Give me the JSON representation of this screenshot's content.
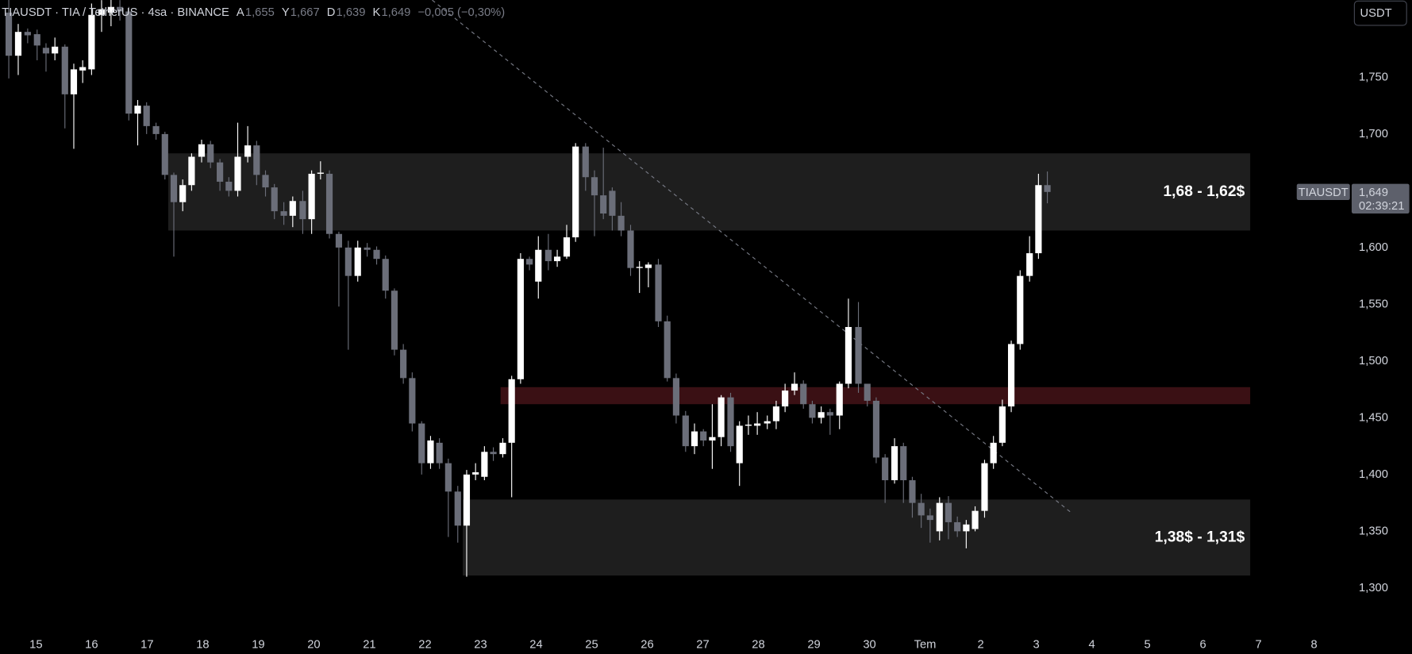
{
  "chart_data": {
    "type": "candlestick",
    "header": {
      "symbol": "TIAUSDT · TIA / TetherUS · 4sa · BINANCE",
      "ohlc": [
        {
          "label": "A",
          "value": "1,655"
        },
        {
          "label": "Y",
          "value": "1,667"
        },
        {
          "label": "D",
          "value": "1,639"
        },
        {
          "label": "K",
          "value": "1,649"
        }
      ],
      "change": "−0,005 (−0,30%)"
    },
    "currency_button": "USDT",
    "x": [
      -0.49,
      -0.32,
      -0.15,
      0.02,
      0.18,
      0.34,
      0.52,
      0.68,
      0.84,
      1.0,
      1.18,
      1.35,
      1.51,
      1.67,
      1.83,
      1.99,
      2.16,
      2.32,
      2.48,
      2.64,
      2.8,
      2.98,
      3.14,
      3.31,
      3.47,
      3.63,
      3.81,
      3.97,
      4.13,
      4.29,
      4.46,
      4.62,
      4.8,
      4.96,
      5.12,
      5.28,
      5.45,
      5.62,
      5.79,
      5.96,
      6.13,
      6.29,
      6.45,
      6.61,
      6.77,
      6.94,
      7.1,
      7.26,
      7.42,
      7.59,
      7.75,
      7.91,
      8.07,
      8.23,
      8.4,
      8.56,
      8.72,
      8.88,
      9.04,
      9.22,
      9.38,
      9.55,
      9.71,
      9.89,
      10.05,
      10.21,
      10.37,
      10.53,
      10.7,
      10.86,
      11.02,
      11.2,
      11.36,
      11.52,
      11.69,
      11.85,
      12.01,
      12.17,
      12.33,
      12.5,
      12.66,
      12.82,
      12.98,
      13.16,
      13.32,
      13.48,
      13.65,
      13.81,
      13.97,
      14.13,
      14.29,
      14.46,
      14.62,
      14.8,
      14.96,
      15.12,
      15.28,
      15.45,
      15.61,
      15.77,
      15.93,
      16.09,
      16.26,
      16.42,
      16.58,
      16.74,
      16.9,
      17.07,
      17.23,
      17.39,
      17.55,
      17.71,
      17.88,
      18.04,
      18.2
    ],
    "open": [
      1.807,
      1.769,
      1.79,
      1.788,
      1.776,
      1.771,
      1.777,
      1.735,
      1.756,
      1.757,
      1.805,
      1.807,
      1.812,
      1.808,
      1.718,
      1.725,
      1.707,
      1.7,
      1.664,
      1.64,
      1.655,
      1.68,
      1.691,
      1.675,
      1.658,
      1.65,
      1.68,
      1.69,
      1.664,
      1.653,
      1.632,
      1.628,
      1.641,
      1.625,
      1.665,
      1.665,
      1.612,
      1.6,
      1.575,
      1.6,
      1.598,
      1.59,
      1.562,
      1.51,
      1.485,
      1.445,
      1.41,
      1.428,
      1.41,
      1.385,
      1.355,
      1.4,
      1.398,
      1.42,
      1.418,
      1.428,
      1.484,
      1.59,
      1.57,
      1.598,
      1.588,
      1.592,
      1.609,
      1.689,
      1.662,
      1.646,
      1.65,
      1.628,
      1.615,
      1.582,
      1.582,
      1.585,
      1.535,
      1.485,
      1.452,
      1.425,
      1.438,
      1.43,
      1.433,
      1.468,
      1.41,
      1.443,
      1.443,
      1.445,
      1.447,
      1.46,
      1.474,
      1.48,
      1.462,
      1.45,
      1.455,
      1.452,
      1.48,
      1.53,
      1.48,
      1.465,
      1.415,
      1.395,
      1.425,
      1.395,
      1.375,
      1.364,
      1.35,
      1.375,
      1.358,
      1.35,
      1.352,
      1.368,
      1.41,
      1.428,
      1.46,
      1.515,
      1.575,
      1.595,
      1.655
    ],
    "high": [
      1.82,
      1.797,
      1.793,
      1.792,
      1.78,
      1.785,
      1.779,
      1.762,
      1.765,
      1.815,
      1.818,
      1.82,
      1.818,
      1.812,
      1.73,
      1.728,
      1.71,
      1.702,
      1.666,
      1.66,
      1.683,
      1.695,
      1.694,
      1.678,
      1.662,
      1.71,
      1.707,
      1.694,
      1.668,
      1.656,
      1.64,
      1.645,
      1.65,
      1.668,
      1.676,
      1.668,
      1.614,
      1.606,
      1.606,
      1.604,
      1.601,
      1.593,
      1.564,
      1.515,
      1.49,
      1.447,
      1.434,
      1.432,
      1.414,
      1.39,
      1.404,
      1.41,
      1.425,
      1.424,
      1.432,
      1.487,
      1.595,
      1.592,
      1.61,
      1.612,
      1.598,
      1.62,
      1.692,
      1.692,
      1.668,
      1.688,
      1.653,
      1.64,
      1.62,
      1.588,
      1.587,
      1.59,
      1.54,
      1.489,
      1.456,
      1.445,
      1.44,
      1.462,
      1.47,
      1.472,
      1.447,
      1.452,
      1.455,
      1.452,
      1.465,
      1.48,
      1.49,
      1.483,
      1.465,
      1.46,
      1.458,
      1.482,
      1.555,
      1.552,
      1.476,
      1.468,
      1.418,
      1.432,
      1.428,
      1.398,
      1.383,
      1.37,
      1.38,
      1.381,
      1.363,
      1.36,
      1.372,
      1.413,
      1.434,
      1.466,
      1.518,
      1.58,
      1.61,
      1.665,
      1.667
    ],
    "low": [
      1.749,
      1.752,
      1.78,
      1.765,
      1.755,
      1.765,
      1.705,
      1.687,
      1.745,
      1.752,
      1.79,
      1.795,
      1.8,
      1.712,
      1.69,
      1.7,
      1.695,
      1.66,
      1.592,
      1.632,
      1.65,
      1.675,
      1.67,
      1.65,
      1.645,
      1.645,
      1.675,
      1.655,
      1.645,
      1.625,
      1.62,
      1.618,
      1.612,
      1.612,
      1.66,
      1.608,
      1.548,
      1.51,
      1.57,
      1.592,
      1.585,
      1.555,
      1.505,
      1.48,
      1.438,
      1.4,
      1.405,
      1.405,
      1.345,
      1.34,
      1.31,
      1.395,
      1.395,
      1.412,
      1.415,
      1.38,
      1.48,
      1.58,
      1.555,
      1.58,
      1.583,
      1.59,
      1.605,
      1.65,
      1.61,
      1.625,
      1.615,
      1.61,
      1.575,
      1.56,
      1.565,
      1.53,
      1.482,
      1.445,
      1.42,
      1.418,
      1.425,
      1.405,
      1.425,
      1.42,
      1.39,
      1.435,
      1.435,
      1.44,
      1.44,
      1.455,
      1.47,
      1.458,
      1.445,
      1.445,
      1.435,
      1.44,
      1.476,
      1.472,
      1.46,
      1.41,
      1.375,
      1.392,
      1.375,
      1.362,
      1.353,
      1.34,
      1.342,
      1.343,
      1.345,
      1.335,
      1.35,
      1.362,
      1.405,
      1.425,
      1.455,
      1.51,
      1.57,
      1.59,
      1.639
    ],
    "close": [
      1.769,
      1.79,
      1.787,
      1.778,
      1.771,
      1.777,
      1.735,
      1.757,
      1.759,
      1.805,
      1.81,
      1.812,
      1.808,
      1.718,
      1.725,
      1.707,
      1.7,
      1.664,
      1.64,
      1.655,
      1.68,
      1.691,
      1.675,
      1.658,
      1.65,
      1.68,
      1.69,
      1.664,
      1.653,
      1.632,
      1.628,
      1.641,
      1.625,
      1.665,
      1.666,
      1.612,
      1.6,
      1.575,
      1.6,
      1.598,
      1.59,
      1.562,
      1.51,
      1.485,
      1.445,
      1.41,
      1.43,
      1.41,
      1.385,
      1.355,
      1.4,
      1.402,
      1.42,
      1.418,
      1.428,
      1.484,
      1.59,
      1.585,
      1.598,
      1.588,
      1.592,
      1.609,
      1.689,
      1.662,
      1.646,
      1.63,
      1.628,
      1.615,
      1.582,
      1.583,
      1.585,
      1.535,
      1.485,
      1.452,
      1.425,
      1.438,
      1.43,
      1.433,
      1.468,
      1.425,
      1.443,
      1.444,
      1.445,
      1.447,
      1.46,
      1.474,
      1.48,
      1.462,
      1.45,
      1.455,
      1.452,
      1.48,
      1.53,
      1.48,
      1.465,
      1.415,
      1.395,
      1.425,
      1.395,
      1.375,
      1.364,
      1.36,
      1.375,
      1.358,
      1.35,
      1.356,
      1.368,
      1.41,
      1.428,
      1.46,
      1.515,
      1.575,
      1.595,
      1.655,
      1.649
    ],
    "up_color": "#ffffff",
    "down_color": "#6b6e79",
    "xlim": [
      -0.648,
      23.66
    ],
    "ylim": [
      1.265,
      1.818
    ],
    "grid": false,
    "xticks": [
      {
        "value": 0,
        "label": "15"
      },
      {
        "value": 1,
        "label": "16"
      },
      {
        "value": 2,
        "label": "17"
      },
      {
        "value": 3,
        "label": "18"
      },
      {
        "value": 4,
        "label": "19"
      },
      {
        "value": 5,
        "label": "20"
      },
      {
        "value": 6,
        "label": "21"
      },
      {
        "value": 7,
        "label": "22"
      },
      {
        "value": 8,
        "label": "23"
      },
      {
        "value": 9,
        "label": "24"
      },
      {
        "value": 10,
        "label": "25"
      },
      {
        "value": 11,
        "label": "26"
      },
      {
        "value": 12,
        "label": "27"
      },
      {
        "value": 13,
        "label": "28"
      },
      {
        "value": 14,
        "label": "29"
      },
      {
        "value": 15,
        "label": "30"
      },
      {
        "value": 16,
        "label": "Tem"
      },
      {
        "value": 17,
        "label": "2"
      },
      {
        "value": 18,
        "label": "3"
      },
      {
        "value": 19,
        "label": "4"
      },
      {
        "value": 20,
        "label": "5"
      },
      {
        "value": 21,
        "label": "6"
      },
      {
        "value": 22,
        "label": "7"
      },
      {
        "value": 23,
        "label": "8"
      }
    ],
    "yticks": [
      {
        "value": 1.75,
        "label": "1,750"
      },
      {
        "value": 1.7,
        "label": "1,700"
      },
      {
        "value": 1.65,
        "label": "1,650"
      },
      {
        "value": 1.6,
        "label": "1,600"
      },
      {
        "value": 1.55,
        "label": "1,550"
      },
      {
        "value": 1.5,
        "label": "1,500"
      },
      {
        "value": 1.45,
        "label": "1,450"
      },
      {
        "value": 1.4,
        "label": "1,400"
      },
      {
        "value": 1.35,
        "label": "1,350"
      },
      {
        "value": 1.3,
        "label": "1,300"
      }
    ],
    "zones": [
      {
        "x": [
          2.38,
          21.85
        ],
        "y": [
          1.615,
          1.683
        ],
        "color": "#1e1e1e",
        "label": "1,68 - 1,62$"
      },
      {
        "x": [
          8.36,
          21.85
        ],
        "y": [
          1.462,
          1.477
        ],
        "color": "#3a1014"
      },
      {
        "x": [
          7.68,
          21.85
        ],
        "y": [
          1.311,
          1.378
        ],
        "color": "#1e1e1e",
        "label": "1,38$ - 1,31$"
      }
    ],
    "trendline": {
      "x": [
        7.13,
        18.64
      ],
      "y": [
        1.818,
        1.366
      ],
      "color": "#787b86"
    },
    "last_price": {
      "symbol": "TIAUSDT",
      "price": "1,649",
      "countdown": "02:39:21",
      "color": "#5d606b"
    }
  }
}
